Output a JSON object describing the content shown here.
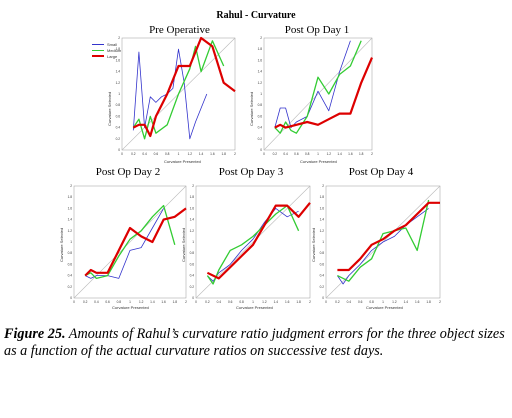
{
  "title": "Rahul - Curvature",
  "legend": [
    {
      "name": "Small",
      "color": "#3333cc"
    },
    {
      "name": "Medium",
      "color": "#33cc33"
    },
    {
      "name": "Large",
      "color": "#dd0000"
    }
  ],
  "caption": {
    "label": "Figure 25.",
    "text": " Amounts of Rahul’s curvature ratio judgment errors for the three object sizes as a function of the actual curvature ratios on successive test days."
  },
  "chart_data": [
    {
      "type": "line",
      "title": "Pre Operative",
      "xlabel": "Curvature Presented",
      "ylabel": "Curvature Selected",
      "xlim": [
        0,
        2
      ],
      "ylim": [
        0,
        2
      ],
      "x_ticks": [
        "0",
        "0.2",
        "0.4",
        "0.6",
        "0.8",
        "1",
        "1.2",
        "1.4",
        "1.6",
        "1.8",
        "2"
      ],
      "y_ticks": [
        "0",
        "0.2",
        "0.4",
        "0.6",
        "0.8",
        "1",
        "1.2",
        "1.4",
        "1.6",
        "1.8",
        "2"
      ],
      "series": [
        {
          "name": "Small",
          "color": "#3333cc",
          "x": [
            0.2,
            0.3,
            0.4,
            0.5,
            0.6,
            0.7,
            0.8,
            0.9,
            1.0,
            1.1,
            1.2,
            1.3,
            1.5
          ],
          "y": [
            0.35,
            1.75,
            0.4,
            0.95,
            0.85,
            0.95,
            1.0,
            1.1,
            1.8,
            1.2,
            0.2,
            0.5,
            1.0
          ]
        },
        {
          "name": "Medium",
          "color": "#33cc33",
          "x": [
            0.2,
            0.3,
            0.4,
            0.5,
            0.6,
            0.8,
            1.0,
            1.2,
            1.3,
            1.4,
            1.6,
            1.8
          ],
          "y": [
            0.4,
            0.55,
            0.2,
            0.6,
            0.3,
            0.45,
            1.0,
            1.45,
            1.85,
            1.4,
            1.95,
            1.5
          ]
        },
        {
          "name": "Large",
          "color": "#dd0000",
          "x": [
            0.2,
            0.3,
            0.4,
            0.5,
            0.6,
            0.8,
            1.0,
            1.2,
            1.4,
            1.6,
            1.8,
            2.0
          ],
          "y": [
            0.4,
            0.45,
            0.45,
            0.25,
            0.6,
            1.0,
            1.5,
            1.5,
            2.0,
            1.85,
            1.2,
            1.05
          ]
        }
      ]
    },
    {
      "type": "line",
      "title": "Post Op Day 1",
      "xlabel": "Curvature Presented",
      "ylabel": "Curvature Selected",
      "xlim": [
        0,
        2
      ],
      "ylim": [
        0,
        2
      ],
      "x_ticks": [
        "0",
        "0.2",
        "0.4",
        "0.6",
        "0.8",
        "1",
        "1.2",
        "1.4",
        "1.6",
        "1.8",
        "2"
      ],
      "y_ticks": [
        "0",
        "0.2",
        "0.4",
        "0.6",
        "0.8",
        "1",
        "1.2",
        "1.4",
        "1.6",
        "1.8",
        "2"
      ],
      "series": [
        {
          "name": "Small",
          "color": "#3333cc",
          "x": [
            0.2,
            0.3,
            0.4,
            0.5,
            0.6,
            0.8,
            1.0,
            1.2,
            1.4,
            1.6
          ],
          "y": [
            0.4,
            0.75,
            0.75,
            0.4,
            0.5,
            0.6,
            1.05,
            0.7,
            1.4,
            1.95
          ]
        },
        {
          "name": "Medium",
          "color": "#33cc33",
          "x": [
            0.2,
            0.3,
            0.4,
            0.5,
            0.6,
            0.8,
            1.0,
            1.2,
            1.4,
            1.6,
            1.8
          ],
          "y": [
            0.4,
            0.3,
            0.5,
            0.35,
            0.3,
            0.6,
            1.3,
            1.0,
            1.35,
            1.5,
            1.95
          ]
        },
        {
          "name": "Large",
          "color": "#dd0000",
          "x": [
            0.2,
            0.3,
            0.4,
            0.6,
            0.8,
            1.0,
            1.2,
            1.4,
            1.6,
            1.8,
            2.0
          ],
          "y": [
            0.4,
            0.45,
            0.4,
            0.45,
            0.5,
            0.45,
            0.55,
            0.65,
            0.65,
            1.2,
            1.65
          ]
        }
      ]
    },
    {
      "type": "line",
      "title": "Post Op Day 2",
      "xlabel": "Curvature Presented",
      "ylabel": "Curvature Selected",
      "xlim": [
        0,
        2
      ],
      "ylim": [
        0,
        2
      ],
      "x_ticks": [
        "0",
        "0.2",
        "0.4",
        "0.6",
        "0.8",
        "1",
        "1.2",
        "1.4",
        "1.6",
        "1.8",
        "2"
      ],
      "y_ticks": [
        "0",
        "0.2",
        "0.4",
        "0.6",
        "0.8",
        "1",
        "1.2",
        "1.4",
        "1.6",
        "1.8",
        "2"
      ],
      "series": [
        {
          "name": "Small",
          "color": "#3333cc",
          "x": [
            0.2,
            0.3,
            0.4,
            0.6,
            0.8,
            1.0,
            1.2,
            1.4,
            1.6
          ],
          "y": [
            0.4,
            0.35,
            0.4,
            0.4,
            0.35,
            0.85,
            0.9,
            1.25,
            1.6
          ]
        },
        {
          "name": "Medium",
          "color": "#33cc33",
          "x": [
            0.2,
            0.3,
            0.4,
            0.6,
            0.8,
            1.0,
            1.2,
            1.4,
            1.6,
            1.8
          ],
          "y": [
            0.4,
            0.45,
            0.35,
            0.4,
            0.75,
            1.05,
            1.2,
            1.45,
            1.65,
            0.95
          ]
        },
        {
          "name": "Large",
          "color": "#dd0000",
          "x": [
            0.2,
            0.3,
            0.4,
            0.6,
            0.8,
            1.0,
            1.2,
            1.4,
            1.6,
            1.8,
            2.0
          ],
          "y": [
            0.4,
            0.5,
            0.45,
            0.45,
            0.85,
            1.25,
            1.1,
            1.0,
            1.4,
            1.45,
            1.6
          ]
        }
      ]
    },
    {
      "type": "line",
      "title": "Post Op Day 3",
      "xlabel": "Curvature Presented",
      "ylabel": "Curvature Selected",
      "xlim": [
        0,
        2
      ],
      "ylim": [
        0,
        2
      ],
      "x_ticks": [
        "0",
        "0.2",
        "0.4",
        "0.6",
        "0.8",
        "1",
        "1.2",
        "1.4",
        "1.6",
        "1.8",
        "2"
      ],
      "y_ticks": [
        "0",
        "0.2",
        "0.4",
        "0.6",
        "0.8",
        "1",
        "1.2",
        "1.4",
        "1.6",
        "1.8",
        "2"
      ],
      "series": [
        {
          "name": "Small",
          "color": "#3333cc",
          "x": [
            0.2,
            0.3,
            0.4,
            0.6,
            0.8,
            1.0,
            1.2,
            1.4,
            1.6,
            1.8
          ],
          "y": [
            0.4,
            0.3,
            0.45,
            0.6,
            0.85,
            1.05,
            1.35,
            1.6,
            1.45,
            1.55
          ]
        },
        {
          "name": "Medium",
          "color": "#33cc33",
          "x": [
            0.2,
            0.3,
            0.4,
            0.6,
            0.8,
            1.0,
            1.2,
            1.4,
            1.6,
            1.8
          ],
          "y": [
            0.4,
            0.25,
            0.5,
            0.85,
            0.95,
            1.1,
            1.3,
            1.5,
            1.65,
            1.2
          ]
        },
        {
          "name": "Large",
          "color": "#dd0000",
          "x": [
            0.2,
            0.4,
            0.6,
            0.8,
            1.0,
            1.2,
            1.4,
            1.6,
            1.8,
            2.0
          ],
          "y": [
            0.45,
            0.35,
            0.55,
            0.75,
            0.95,
            1.3,
            1.65,
            1.65,
            1.45,
            1.7
          ]
        }
      ]
    },
    {
      "type": "line",
      "title": "Post Op Day 4",
      "xlabel": "Curvature Presented",
      "ylabel": "Curvature Selected",
      "xlim": [
        0,
        2
      ],
      "ylim": [
        0,
        2
      ],
      "x_ticks": [
        "0",
        "0.2",
        "0.4",
        "0.6",
        "0.8",
        "1",
        "1.2",
        "1.4",
        "1.6",
        "1.8",
        "2"
      ],
      "y_ticks": [
        "0",
        "0.2",
        "0.4",
        "0.6",
        "0.8",
        "1",
        "1.2",
        "1.4",
        "1.6",
        "1.8",
        "2"
      ],
      "series": [
        {
          "name": "Small",
          "color": "#3333cc",
          "x": [
            0.2,
            0.3,
            0.4,
            0.6,
            0.8,
            1.0,
            1.2,
            1.4,
            1.6,
            1.8
          ],
          "y": [
            0.4,
            0.25,
            0.4,
            0.6,
            0.85,
            1.0,
            1.1,
            1.3,
            1.45,
            1.6
          ]
        },
        {
          "name": "Medium",
          "color": "#33cc33",
          "x": [
            0.2,
            0.4,
            0.6,
            0.8,
            1.0,
            1.2,
            1.4,
            1.6,
            1.8
          ],
          "y": [
            0.4,
            0.3,
            0.55,
            0.7,
            1.15,
            1.2,
            1.25,
            0.85,
            1.75
          ]
        },
        {
          "name": "Large",
          "color": "#dd0000",
          "x": [
            0.2,
            0.4,
            0.6,
            0.8,
            1.0,
            1.2,
            1.4,
            1.6,
            1.8,
            2.0
          ],
          "y": [
            0.5,
            0.5,
            0.7,
            0.95,
            1.05,
            1.2,
            1.3,
            1.5,
            1.7,
            1.7
          ]
        }
      ]
    }
  ]
}
